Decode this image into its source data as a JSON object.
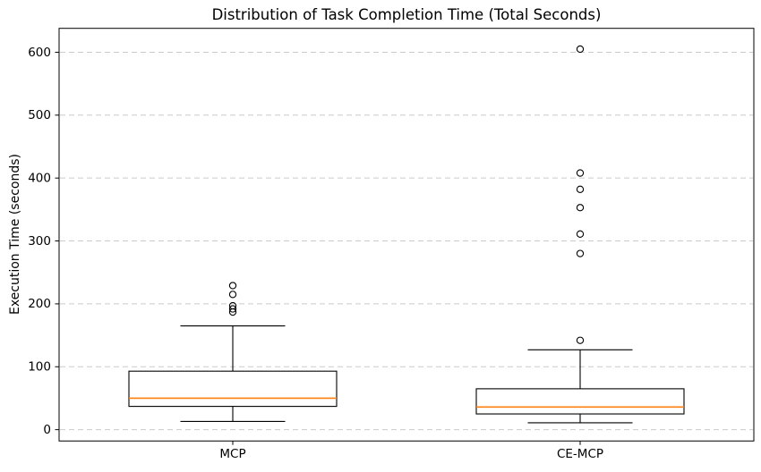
{
  "figure": {
    "title": "Distribution of Task Completion Time (Total Seconds)",
    "ylabel": "Execution Time (seconds)"
  },
  "chart_data": {
    "type": "boxplot",
    "title": "Distribution of Task Completion Time (Total Seconds)",
    "xlabel": "",
    "ylabel": "Execution Time (seconds)",
    "categories": [
      "MCP",
      "CE-MCP"
    ],
    "yticks": [
      0,
      100,
      200,
      300,
      400,
      500,
      600
    ],
    "ylim": [
      -18,
      638
    ],
    "grid": {
      "axis": "y",
      "style": "dashed",
      "color": "#cbcbcb"
    },
    "legend": "none",
    "colors": {
      "box": "#000000",
      "median": "#ff7f0e",
      "outlier_edge": "#000000",
      "background": "#ffffff",
      "spine": "#000000",
      "text": "#000000"
    },
    "series": [
      {
        "name": "MCP",
        "whisker_low": 13,
        "q1": 37,
        "median": 50,
        "q3": 93,
        "whisker_high": 165,
        "outliers": [
          229,
          215,
          197,
          192,
          187
        ]
      },
      {
        "name": "CE-MCP",
        "whisker_low": 11,
        "q1": 25,
        "median": 36,
        "q3": 65,
        "whisker_high": 127,
        "outliers": [
          605,
          408,
          382,
          353,
          311,
          280,
          142
        ]
      }
    ]
  }
}
